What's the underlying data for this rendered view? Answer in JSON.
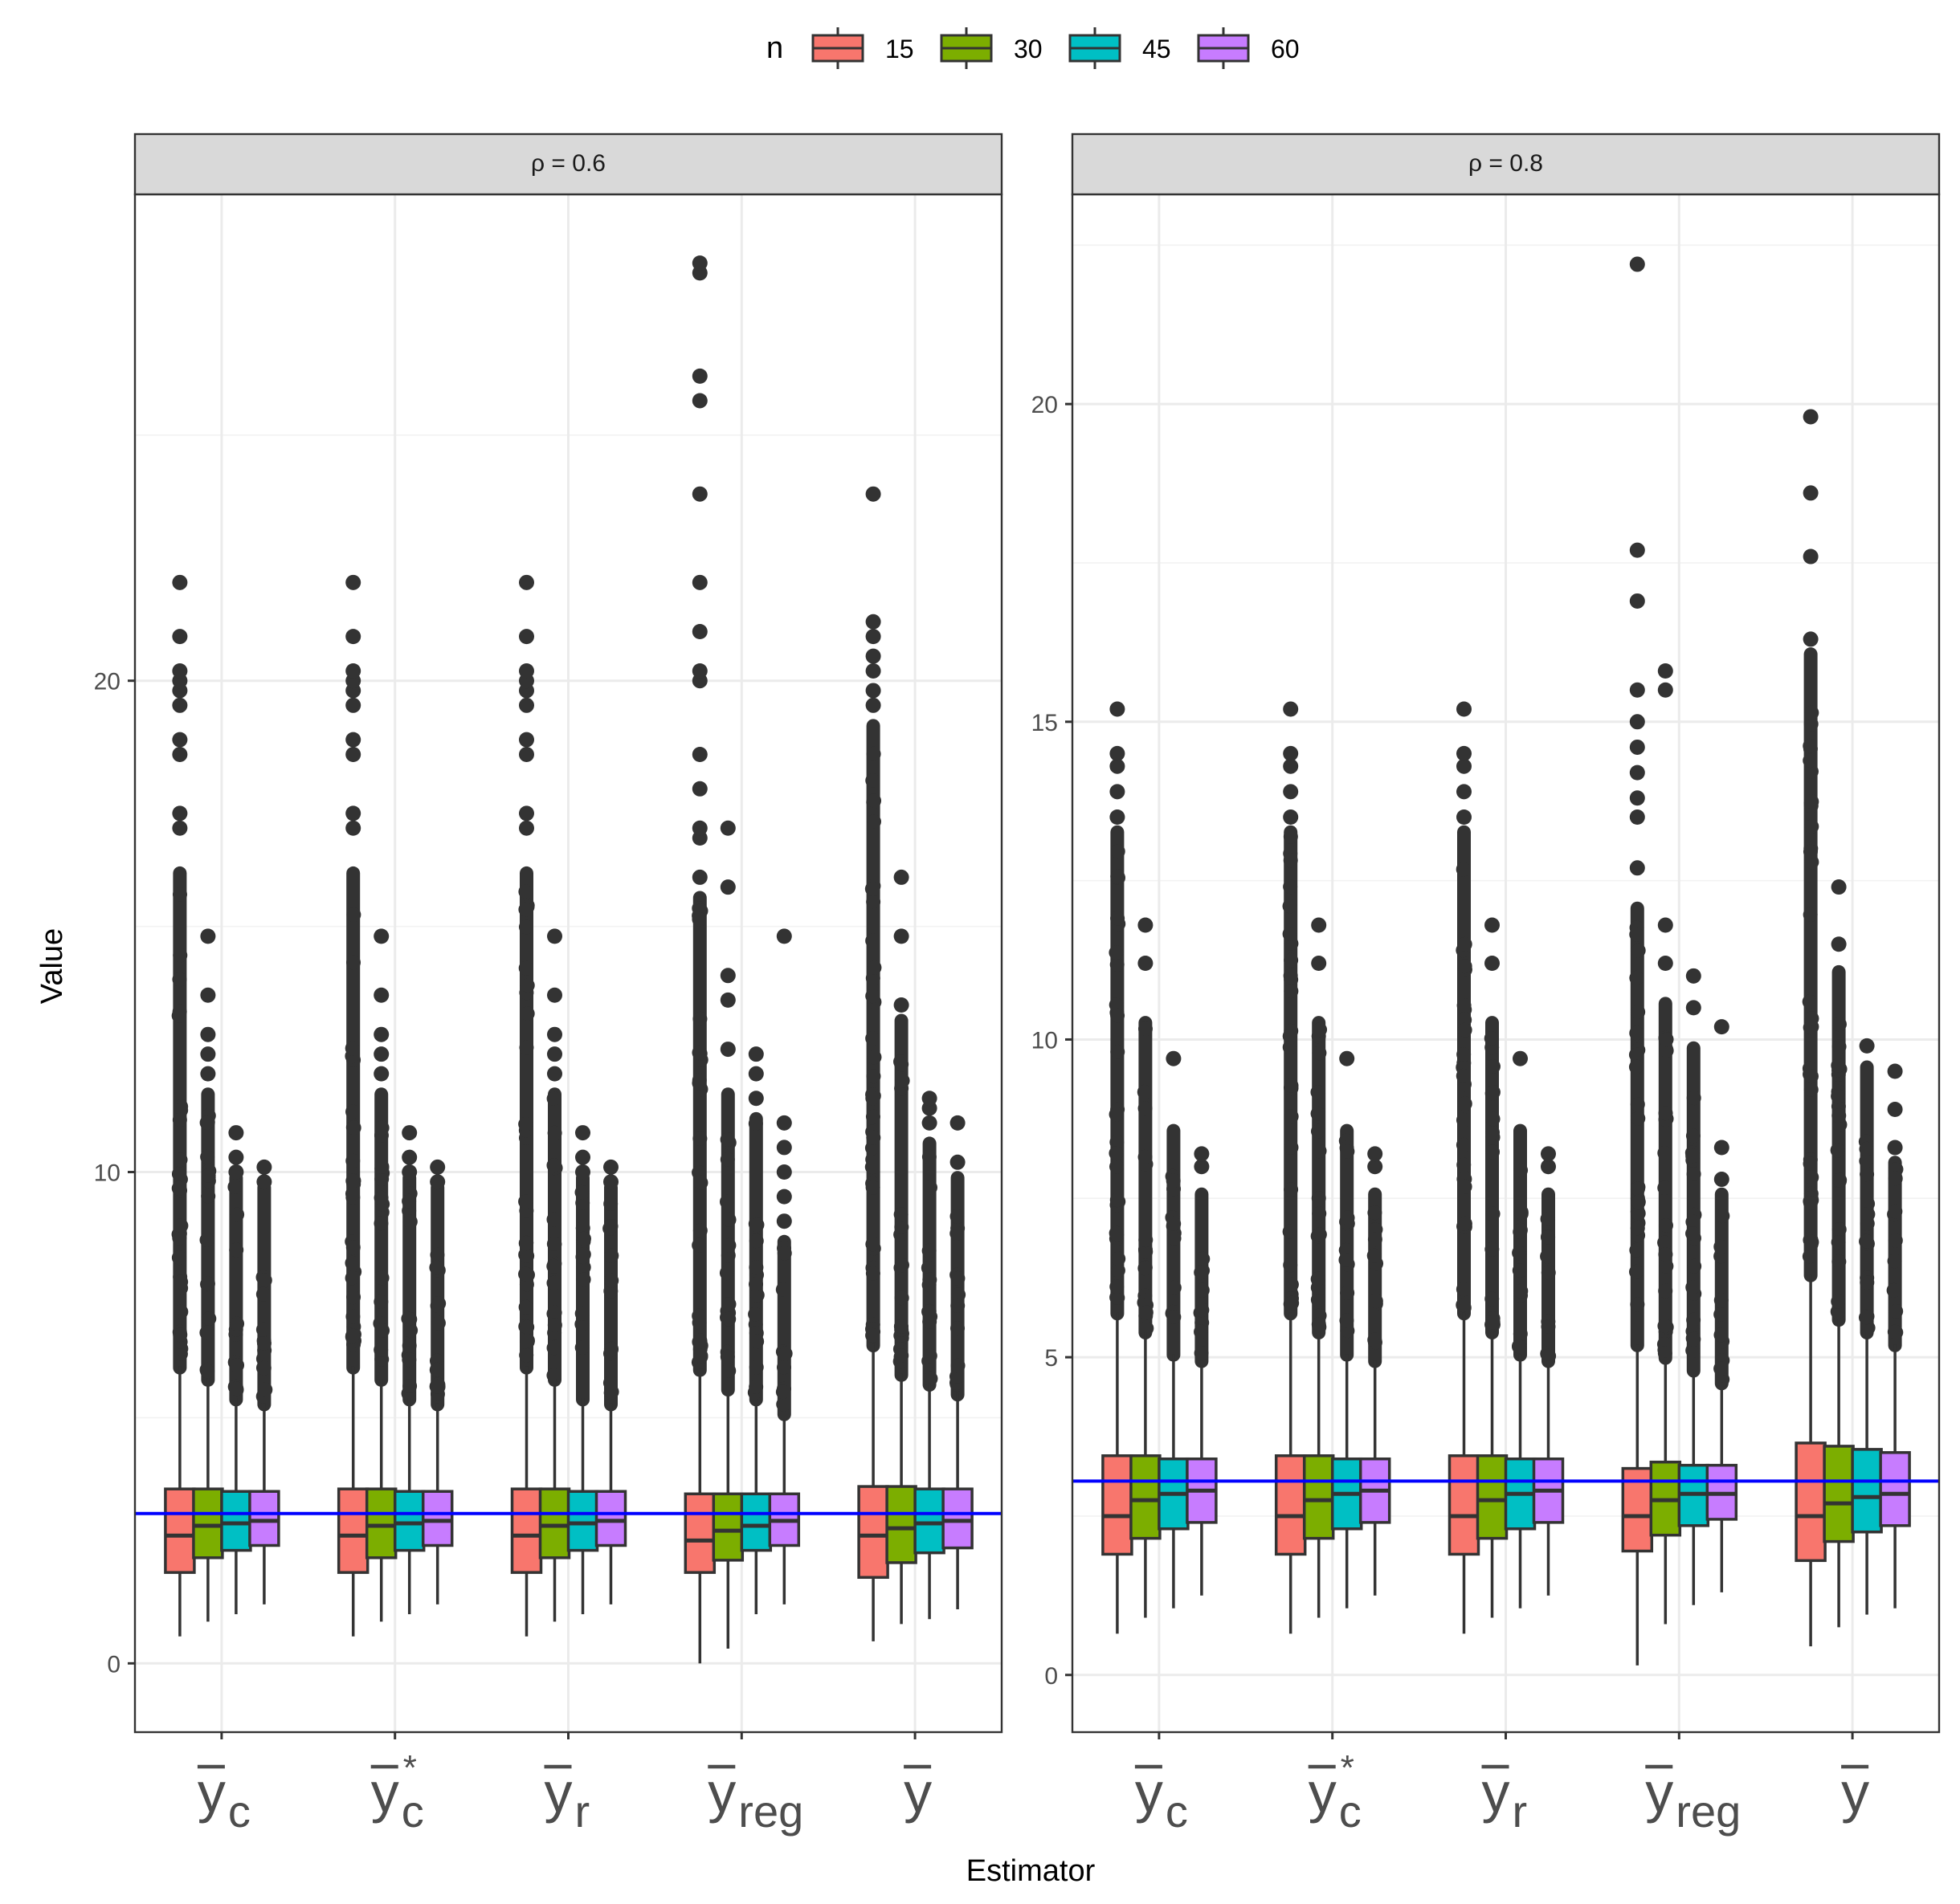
{
  "chart_data": [
    {
      "type": "boxplot",
      "facet": "ρ = 0.6",
      "xlabel": "Estimator",
      "ylabel": "Value",
      "ylim": [
        -1.4,
        29.9
      ],
      "yticks": [
        0,
        10,
        20
      ],
      "reference_line": 3.05,
      "reference_color": "#0000FF",
      "estimators": [
        {
          "label": "ȳc",
          "base": "y",
          "sub": "c",
          "sup": ""
        },
        {
          "label": "ȳc*",
          "base": "y",
          "sub": "c",
          "sup": "*"
        },
        {
          "label": "ȳr",
          "base": "y",
          "sub": "r",
          "sup": ""
        },
        {
          "label": "ȳreg",
          "base": "y",
          "sub": "reg",
          "sup": ""
        },
        {
          "label": "ȳ",
          "base": "y",
          "sub": "",
          "sup": ""
        }
      ],
      "groups": [
        [
          {
            "n": "15",
            "whisker_low": 0.55,
            "q1": 1.85,
            "median": 2.6,
            "q3": 3.55,
            "whisker_high": 6.05,
            "outlier_range": [
              6.1,
              16.0
            ],
            "outliers": [
              17.0,
              17.3,
              18.5,
              18.8,
              19.5,
              19.8,
              20.0,
              20.2,
              20.9,
              22.0
            ]
          },
          {
            "n": "30",
            "whisker_low": 0.85,
            "q1": 2.15,
            "median": 2.8,
            "q3": 3.55,
            "whisker_high": 5.8,
            "outlier_range": [
              5.85,
              11.5
            ],
            "outliers": [
              12.0,
              12.4,
              12.8,
              13.6,
              14.8
            ]
          },
          {
            "n": "45",
            "whisker_low": 1.0,
            "q1": 2.3,
            "median": 2.85,
            "q3": 3.5,
            "whisker_high": 5.4,
            "outlier_range": [
              5.45,
              9.8
            ],
            "outliers": [
              10.0,
              10.3,
              10.8
            ]
          },
          {
            "n": "60",
            "whisker_low": 1.2,
            "q1": 2.4,
            "median": 2.9,
            "q3": 3.5,
            "whisker_high": 5.3,
            "outlier_range": [
              5.35,
              9.6
            ],
            "outliers": [
              9.8,
              10.1
            ]
          }
        ],
        [
          {
            "n": "15",
            "whisker_low": 0.55,
            "q1": 1.85,
            "median": 2.6,
            "q3": 3.55,
            "whisker_high": 6.05,
            "outlier_range": [
              6.1,
              16.0
            ],
            "outliers": [
              17.0,
              17.3,
              18.5,
              18.8,
              19.5,
              19.8,
              20.0,
              20.2,
              20.9,
              22.0
            ]
          },
          {
            "n": "30",
            "whisker_low": 0.85,
            "q1": 2.15,
            "median": 2.8,
            "q3": 3.55,
            "whisker_high": 5.8,
            "outlier_range": [
              5.85,
              11.5
            ],
            "outliers": [
              12.0,
              12.4,
              12.8,
              13.6,
              14.8
            ]
          },
          {
            "n": "45",
            "whisker_low": 1.0,
            "q1": 2.3,
            "median": 2.85,
            "q3": 3.5,
            "whisker_high": 5.4,
            "outlier_range": [
              5.45,
              9.8
            ],
            "outliers": [
              10.0,
              10.3,
              10.8
            ]
          },
          {
            "n": "60",
            "whisker_low": 1.2,
            "q1": 2.4,
            "median": 2.9,
            "q3": 3.5,
            "whisker_high": 5.3,
            "outlier_range": [
              5.35,
              9.6
            ],
            "outliers": [
              9.8,
              10.1
            ]
          }
        ],
        [
          {
            "n": "15",
            "whisker_low": 0.55,
            "q1": 1.85,
            "median": 2.6,
            "q3": 3.55,
            "whisker_high": 6.05,
            "outlier_range": [
              6.1,
              16.0
            ],
            "outliers": [
              17.0,
              17.3,
              18.5,
              18.8,
              19.5,
              19.8,
              20.0,
              20.2,
              20.9,
              22.0
            ]
          },
          {
            "n": "30",
            "whisker_low": 0.85,
            "q1": 2.15,
            "median": 2.8,
            "q3": 3.55,
            "whisker_high": 5.8,
            "outlier_range": [
              5.85,
              11.5
            ],
            "outliers": [
              12.0,
              12.4,
              12.8,
              13.6,
              14.8
            ]
          },
          {
            "n": "45",
            "whisker_low": 1.0,
            "q1": 2.3,
            "median": 2.85,
            "q3": 3.5,
            "whisker_high": 5.4,
            "outlier_range": [
              5.45,
              9.8
            ],
            "outliers": [
              10.0,
              10.3,
              10.8
            ]
          },
          {
            "n": "60",
            "whisker_low": 1.2,
            "q1": 2.4,
            "median": 2.9,
            "q3": 3.5,
            "whisker_high": 5.3,
            "outlier_range": [
              5.35,
              9.6
            ],
            "outliers": [
              9.8,
              10.1
            ]
          }
        ],
        [
          {
            "n": "15",
            "whisker_low": 0.0,
            "q1": 1.85,
            "median": 2.5,
            "q3": 3.45,
            "whisker_high": 6.0,
            "outlier_range": [
              6.05,
              15.5
            ],
            "outliers": [
              16.0,
              16.8,
              17.0,
              17.8,
              18.5,
              20.0,
              20.2,
              21.0,
              22.0,
              23.8,
              25.7,
              26.2,
              28.3,
              28.5
            ]
          },
          {
            "n": "30",
            "whisker_low": 0.3,
            "q1": 2.1,
            "median": 2.7,
            "q3": 3.45,
            "whisker_high": 5.6,
            "outlier_range": [
              5.65,
              11.5
            ],
            "outliers": [
              12.5,
              13.5,
              14.0,
              15.8,
              17.0
            ]
          },
          {
            "n": "45",
            "whisker_low": 1.0,
            "q1": 2.3,
            "median": 2.8,
            "q3": 3.45,
            "whisker_high": 5.4,
            "outlier_range": [
              5.45,
              11.0
            ],
            "outliers": [
              11.5,
              12.0,
              12.4
            ]
          },
          {
            "n": "60",
            "whisker_low": 1.2,
            "q1": 2.4,
            "median": 2.9,
            "q3": 3.45,
            "whisker_high": 5.1,
            "outlier_range": [
              5.15,
              8.5
            ],
            "outliers": [
              9.0,
              9.5,
              10.0,
              10.5,
              11.0,
              14.8
            ]
          }
        ],
        [
          {
            "n": "15",
            "whisker_low": 0.45,
            "q1": 1.75,
            "median": 2.6,
            "q3": 3.6,
            "whisker_high": 6.5,
            "outlier_range": [
              6.55,
              19.0
            ],
            "outliers": [
              19.5,
              19.8,
              20.2,
              20.5,
              20.9,
              21.2,
              23.8
            ]
          },
          {
            "n": "30",
            "whisker_low": 0.8,
            "q1": 2.05,
            "median": 2.75,
            "q3": 3.6,
            "whisker_high": 5.9,
            "outlier_range": [
              5.95,
              13.0
            ],
            "outliers": [
              13.4,
              14.8,
              16.0
            ]
          },
          {
            "n": "45",
            "whisker_low": 0.9,
            "q1": 2.25,
            "median": 2.85,
            "q3": 3.55,
            "whisker_high": 5.7,
            "outlier_range": [
              5.75,
              10.5
            ],
            "outliers": [
              11.0,
              11.3,
              11.5
            ]
          },
          {
            "n": "60",
            "whisker_low": 1.1,
            "q1": 2.35,
            "median": 2.9,
            "q3": 3.55,
            "whisker_high": 5.5,
            "outlier_range": [
              5.55,
              9.8
            ],
            "outliers": [
              10.2,
              11.0
            ]
          }
        ]
      ]
    },
    {
      "type": "boxplot",
      "facet": "ρ = 0.8",
      "xlabel": "Estimator",
      "ylabel": "Value",
      "ylim": [
        -0.9,
        23.3
      ],
      "yticks": [
        0,
        5,
        10,
        15,
        20
      ],
      "reference_line": 3.05,
      "reference_color": "#0000FF",
      "estimators": [
        {
          "label": "ȳc",
          "base": "y",
          "sub": "c",
          "sup": ""
        },
        {
          "label": "ȳc*",
          "base": "y",
          "sub": "c",
          "sup": "*"
        },
        {
          "label": "ȳr",
          "base": "y",
          "sub": "r",
          "sup": ""
        },
        {
          "label": "ȳreg",
          "base": "y",
          "sub": "reg",
          "sup": ""
        },
        {
          "label": "ȳ",
          "base": "y",
          "sub": "",
          "sup": ""
        }
      ],
      "groups": [
        [
          {
            "n": "15",
            "whisker_low": 0.65,
            "q1": 1.9,
            "median": 2.5,
            "q3": 3.45,
            "whisker_high": 5.7,
            "outlier_range": [
              5.75,
              13.2
            ],
            "outliers": [
              13.5,
              13.9,
              14.3,
              14.5,
              15.2
            ]
          },
          {
            "n": "30",
            "whisker_low": 0.9,
            "q1": 2.15,
            "median": 2.75,
            "q3": 3.45,
            "whisker_high": 5.4,
            "outlier_range": [
              5.45,
              10.2
            ],
            "outliers": [
              11.2,
              11.8
            ]
          },
          {
            "n": "45",
            "whisker_low": 1.05,
            "q1": 2.3,
            "median": 2.85,
            "q3": 3.4,
            "whisker_high": 5.05,
            "outlier_range": [
              5.1,
              8.5
            ],
            "outliers": [
              9.7
            ]
          },
          {
            "n": "60",
            "whisker_low": 1.25,
            "q1": 2.4,
            "median": 2.9,
            "q3": 3.4,
            "whisker_high": 4.95,
            "outlier_range": [
              5.0,
              7.5
            ],
            "outliers": [
              8.0,
              8.2
            ]
          }
        ],
        [
          {
            "n": "15",
            "whisker_low": 0.65,
            "q1": 1.9,
            "median": 2.5,
            "q3": 3.45,
            "whisker_high": 5.7,
            "outlier_range": [
              5.75,
              13.2
            ],
            "outliers": [
              13.5,
              13.9,
              14.3,
              14.5,
              15.2
            ]
          },
          {
            "n": "30",
            "whisker_low": 0.9,
            "q1": 2.15,
            "median": 2.75,
            "q3": 3.45,
            "whisker_high": 5.4,
            "outlier_range": [
              5.45,
              10.2
            ],
            "outliers": [
              11.2,
              11.8
            ]
          },
          {
            "n": "45",
            "whisker_low": 1.05,
            "q1": 2.3,
            "median": 2.85,
            "q3": 3.4,
            "whisker_high": 5.05,
            "outlier_range": [
              5.1,
              8.5
            ],
            "outliers": [
              9.7
            ]
          },
          {
            "n": "60",
            "whisker_low": 1.25,
            "q1": 2.4,
            "median": 2.9,
            "q3": 3.4,
            "whisker_high": 4.95,
            "outlier_range": [
              5.0,
              7.5
            ],
            "outliers": [
              8.0,
              8.2
            ]
          }
        ],
        [
          {
            "n": "15",
            "whisker_low": 0.65,
            "q1": 1.9,
            "median": 2.5,
            "q3": 3.45,
            "whisker_high": 5.7,
            "outlier_range": [
              5.75,
              13.2
            ],
            "outliers": [
              13.5,
              13.9,
              14.3,
              14.5,
              15.2
            ]
          },
          {
            "n": "30",
            "whisker_low": 0.9,
            "q1": 2.15,
            "median": 2.75,
            "q3": 3.45,
            "whisker_high": 5.4,
            "outlier_range": [
              5.45,
              10.2
            ],
            "outliers": [
              11.2,
              11.8
            ]
          },
          {
            "n": "45",
            "whisker_low": 1.05,
            "q1": 2.3,
            "median": 2.85,
            "q3": 3.4,
            "whisker_high": 5.05,
            "outlier_range": [
              5.1,
              8.5
            ],
            "outliers": [
              9.7
            ]
          },
          {
            "n": "60",
            "whisker_low": 1.25,
            "q1": 2.4,
            "median": 2.9,
            "q3": 3.4,
            "whisker_high": 4.95,
            "outlier_range": [
              5.0,
              7.5
            ],
            "outliers": [
              8.0,
              8.2
            ]
          }
        ],
        [
          {
            "n": "15",
            "whisker_low": 0.15,
            "q1": 1.95,
            "median": 2.5,
            "q3": 3.25,
            "whisker_high": 5.2,
            "outlier_range": [
              5.25,
              12.0
            ],
            "outliers": [
              12.7,
              13.5,
              13.8,
              14.2,
              14.6,
              15.0,
              15.5,
              16.9,
              17.7,
              22.2
            ]
          },
          {
            "n": "30",
            "whisker_low": 0.8,
            "q1": 2.2,
            "median": 2.75,
            "q3": 3.35,
            "whisker_high": 5.0,
            "outlier_range": [
              5.05,
              10.5
            ],
            "outliers": [
              11.2,
              11.8,
              15.5,
              15.8
            ]
          },
          {
            "n": "45",
            "whisker_low": 1.1,
            "q1": 2.35,
            "median": 2.85,
            "q3": 3.3,
            "whisker_high": 4.8,
            "outlier_range": [
              4.85,
              9.8
            ],
            "outliers": [
              10.5,
              11.0
            ]
          },
          {
            "n": "60",
            "whisker_low": 1.3,
            "q1": 2.45,
            "median": 2.85,
            "q3": 3.3,
            "whisker_high": 4.6,
            "outlier_range": [
              4.65,
              7.5
            ],
            "outliers": [
              7.8,
              8.3,
              10.2
            ]
          }
        ],
        [
          {
            "n": "15",
            "whisker_low": 0.45,
            "q1": 1.8,
            "median": 2.5,
            "q3": 3.65,
            "whisker_high": 6.3,
            "outlier_range": [
              6.35,
              16.0
            ],
            "outliers": [
              16.3,
              17.6,
              18.6,
              19.8
            ]
          },
          {
            "n": "30",
            "whisker_low": 0.75,
            "q1": 2.1,
            "median": 2.7,
            "q3": 3.6,
            "whisker_high": 5.6,
            "outlier_range": [
              5.65,
              11.0
            ],
            "outliers": [
              11.5,
              12.4
            ]
          },
          {
            "n": "45",
            "whisker_low": 0.95,
            "q1": 2.25,
            "median": 2.8,
            "q3": 3.55,
            "whisker_high": 5.4,
            "outlier_range": [
              5.45,
              9.5
            ],
            "outliers": [
              9.9
            ]
          },
          {
            "n": "60",
            "whisker_low": 1.05,
            "q1": 2.35,
            "median": 2.85,
            "q3": 3.5,
            "whisker_high": 5.2,
            "outlier_range": [
              5.25,
              8.0
            ],
            "outliers": [
              8.3,
              8.9,
              9.5
            ]
          }
        ]
      ]
    }
  ],
  "legend": {
    "title": "n",
    "items": [
      {
        "label": "15",
        "color": "#F8766D"
      },
      {
        "label": "30",
        "color": "#7CAE00"
      },
      {
        "label": "45",
        "color": "#00BFC4"
      },
      {
        "label": "60",
        "color": "#C77CFF"
      }
    ]
  }
}
